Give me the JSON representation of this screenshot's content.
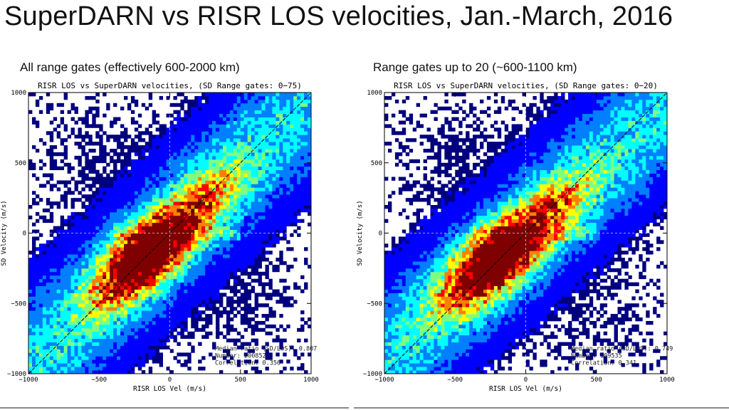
{
  "slide": {
    "title": "SuperDARN vs RISR LOS velocities, Jan.-March, 2016",
    "left_caption": "All range gates (effectively 600-2000 km)",
    "right_caption": "Range gates up to 20 (~600-1100 km)"
  },
  "colors": {
    "colormap": [
      "#00007f",
      "#0000ff",
      "#007fff",
      "#00ffff",
      "#7fff7f",
      "#ffff00",
      "#ff7f00",
      "#ff0000",
      "#7f0000"
    ],
    "axis": "#000000",
    "diagonal": "#000000"
  },
  "chart_data": [
    {
      "type": "heatmap",
      "title": "RISR LOS vs SuperDARN velocities, (SD Range gates: 0−75)",
      "xlabel": "RISR LOS Vel (m/s)",
      "ylabel": "SD Velocity (m/s)",
      "xlim": [
        -1000,
        1000
      ],
      "ylim": [
        -1000,
        1000
      ],
      "x_ticks": [
        "−1000",
        "−500",
        "0",
        "500",
        "1000"
      ],
      "y_ticks": [
        "−1000",
        "−500",
        "0",
        "500",
        "1000"
      ],
      "x_tick_values": [
        -1000,
        -500,
        0,
        500,
        1000
      ],
      "y_tick_values": [
        -1000,
        -500,
        0,
        500,
        1000
      ],
      "reference_line": "y = x",
      "zero_lines": "dashed",
      "core": {
        "slope": 0.95,
        "x_center": -140,
        "y_center": -160
      },
      "stats": [
        "Median ratio (SD/LOS): 0.807",
        "Number: 200852",
        "Correlation: 0.356"
      ],
      "median_ratio": 0.807,
      "number": 200852,
      "correlation": 0.356
    },
    {
      "type": "heatmap",
      "title": "RISR LOS vs SuperDARN velocities, (SD Range gates: 0−20)",
      "xlabel": "RISR LOS Vel (m/s)",
      "ylabel": "SD Velocity (m/s)",
      "xlim": [
        -1000,
        1000
      ],
      "ylim": [
        -1000,
        1000
      ],
      "x_ticks": [
        "−1000",
        "−500",
        "0",
        "500",
        "1000"
      ],
      "y_ticks": [
        "−1000",
        "−500",
        "0",
        "500",
        "1000"
      ],
      "x_tick_values": [
        -1000,
        -500,
        0,
        500,
        1000
      ],
      "y_tick_values": [
        -1000,
        -500,
        0,
        500,
        1000
      ],
      "reference_line": "y = x",
      "zero_lines": "dashed",
      "core": {
        "slope": 0.9,
        "x_center": -200,
        "y_center": -170
      },
      "stats": [
        "Median ratio (SD/LOS): 0.749",
        "Number: 109535",
        "Correlation: 0.341"
      ],
      "median_ratio": 0.749,
      "number": 109535,
      "correlation": 0.341
    }
  ]
}
